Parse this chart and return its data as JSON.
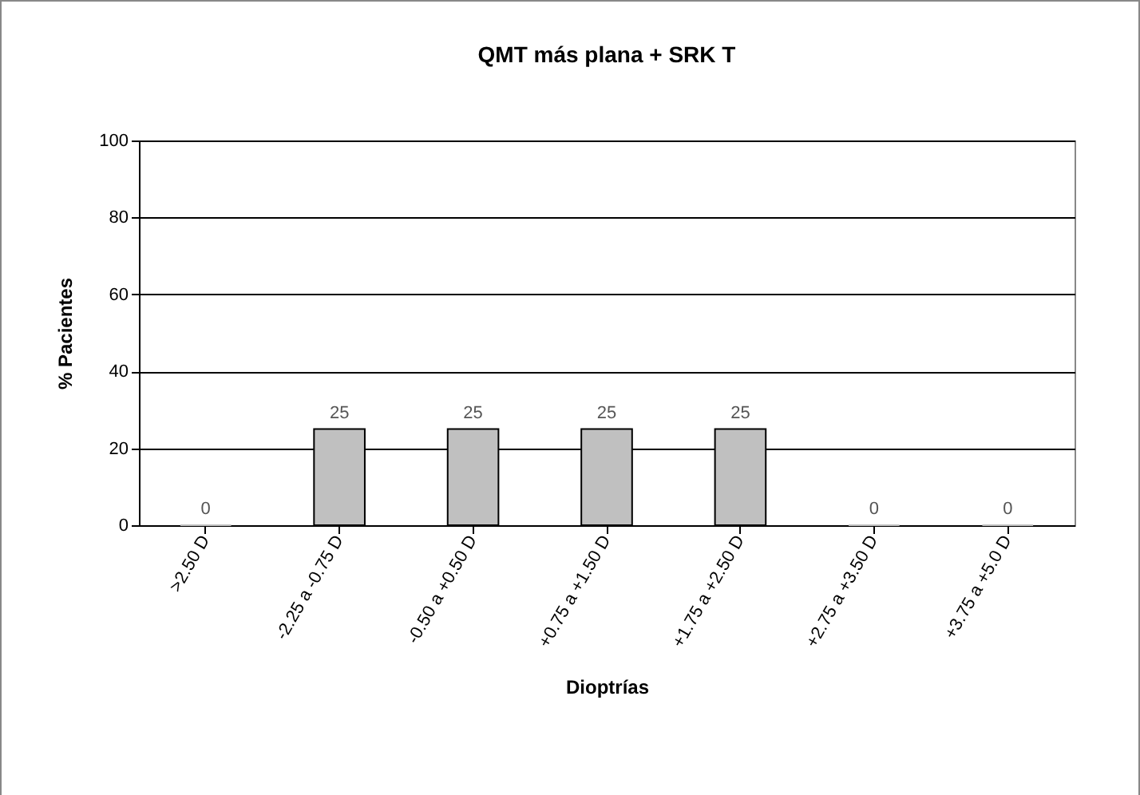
{
  "chart_data": {
    "type": "bar",
    "title": "QMT más plana + SRK T",
    "xlabel": "Dioptrías",
    "ylabel": "% Pacientes",
    "categories": [
      ">2.50 D",
      "-2.25 a -0.75 D",
      "-0.50 a +0.50 D",
      "+0.75 a +1.50 D",
      "+1.75 a +2.50 D",
      "+2.75 a +3.50 D",
      "+3.75 a +5.0 D"
    ],
    "values": [
      0,
      25,
      25,
      25,
      25,
      0,
      0
    ],
    "color": "#c0c0c0",
    "ylim": [
      0,
      100
    ],
    "yticks": [
      0,
      20,
      40,
      60,
      80,
      100
    ],
    "grid": "y",
    "data_labels": true
  }
}
